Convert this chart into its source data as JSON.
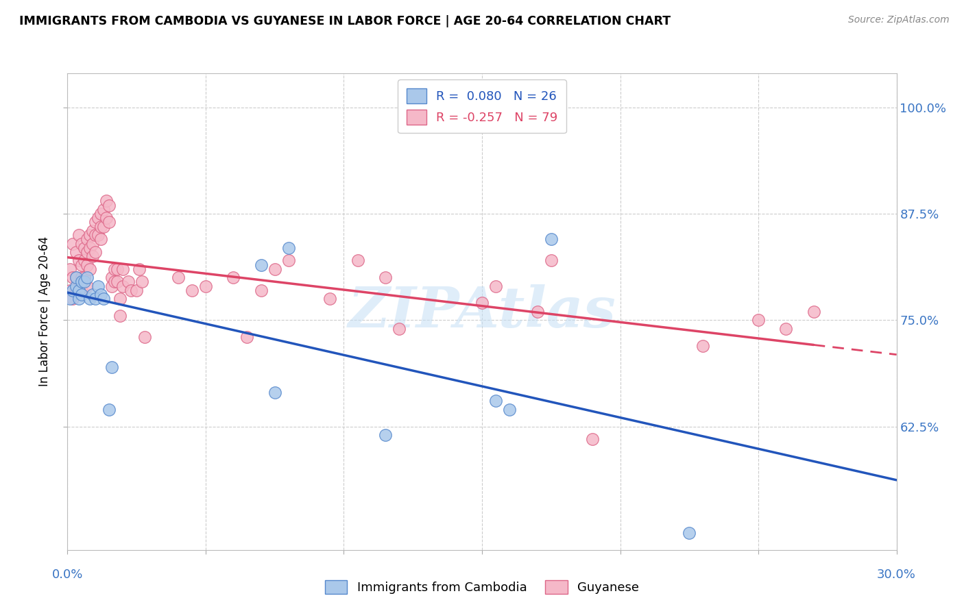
{
  "title": "IMMIGRANTS FROM CAMBODIA VS GUYANESE IN LABOR FORCE | AGE 20-64 CORRELATION CHART",
  "source": "Source: ZipAtlas.com",
  "ylabel": "In Labor Force | Age 20-64",
  "xlim": [
    0.0,
    0.3
  ],
  "ylim": [
    0.48,
    1.04
  ],
  "yticks": [
    0.625,
    0.75,
    0.875,
    1.0
  ],
  "ytick_labels": [
    "62.5%",
    "75.0%",
    "87.5%",
    "100.0%"
  ],
  "xticks": [
    0.0,
    0.05,
    0.1,
    0.15,
    0.2,
    0.25,
    0.3
  ],
  "cambodia_color": "#aac8ea",
  "cambodia_edge": "#5588cc",
  "guyanese_color": "#f5b8c8",
  "guyanese_edge": "#dd6688",
  "line_cambodia": "#2255bb",
  "line_guyanese": "#dd4466",
  "r_cambodia": 0.08,
  "n_cambodia": 26,
  "r_guyanese": -0.257,
  "n_guyanese": 79,
  "legend_label_cambodia": "Immigrants from Cambodia",
  "legend_label_guyanese": "Guyanese",
  "watermark": "ZIPAtlas",
  "cambodia_x": [
    0.001,
    0.002,
    0.003,
    0.003,
    0.004,
    0.004,
    0.005,
    0.005,
    0.006,
    0.007,
    0.008,
    0.009,
    0.01,
    0.011,
    0.012,
    0.013,
    0.015,
    0.016,
    0.07,
    0.075,
    0.08,
    0.115,
    0.155,
    0.16,
    0.175,
    0.225
  ],
  "cambodia_y": [
    0.775,
    0.785,
    0.79,
    0.8,
    0.785,
    0.775,
    0.78,
    0.795,
    0.795,
    0.8,
    0.775,
    0.78,
    0.775,
    0.79,
    0.78,
    0.775,
    0.645,
    0.695,
    0.815,
    0.665,
    0.835,
    0.615,
    0.655,
    0.645,
    0.845,
    0.5
  ],
  "guyanese_x": [
    0.001,
    0.001,
    0.002,
    0.002,
    0.002,
    0.003,
    0.003,
    0.003,
    0.004,
    0.004,
    0.004,
    0.005,
    0.005,
    0.005,
    0.005,
    0.006,
    0.006,
    0.006,
    0.007,
    0.007,
    0.007,
    0.007,
    0.008,
    0.008,
    0.008,
    0.009,
    0.009,
    0.009,
    0.01,
    0.01,
    0.01,
    0.011,
    0.011,
    0.012,
    0.012,
    0.012,
    0.013,
    0.013,
    0.014,
    0.014,
    0.015,
    0.015,
    0.016,
    0.016,
    0.017,
    0.017,
    0.018,
    0.018,
    0.019,
    0.019,
    0.02,
    0.02,
    0.022,
    0.023,
    0.025,
    0.026,
    0.027,
    0.028,
    0.04,
    0.045,
    0.05,
    0.06,
    0.065,
    0.07,
    0.075,
    0.08,
    0.095,
    0.105,
    0.115,
    0.12,
    0.15,
    0.155,
    0.17,
    0.175,
    0.19,
    0.23,
    0.25,
    0.26,
    0.27
  ],
  "guyanese_y": [
    0.81,
    0.785,
    0.84,
    0.8,
    0.775,
    0.83,
    0.8,
    0.785,
    0.85,
    0.82,
    0.79,
    0.84,
    0.815,
    0.8,
    0.785,
    0.835,
    0.82,
    0.8,
    0.845,
    0.83,
    0.815,
    0.79,
    0.85,
    0.835,
    0.81,
    0.855,
    0.84,
    0.825,
    0.865,
    0.85,
    0.83,
    0.87,
    0.85,
    0.875,
    0.86,
    0.845,
    0.88,
    0.86,
    0.89,
    0.87,
    0.885,
    0.865,
    0.8,
    0.79,
    0.81,
    0.795,
    0.81,
    0.795,
    0.775,
    0.755,
    0.81,
    0.79,
    0.795,
    0.785,
    0.785,
    0.81,
    0.795,
    0.73,
    0.8,
    0.785,
    0.79,
    0.8,
    0.73,
    0.785,
    0.81,
    0.82,
    0.775,
    0.82,
    0.8,
    0.74,
    0.77,
    0.79,
    0.76,
    0.82,
    0.61,
    0.72,
    0.75,
    0.74,
    0.76
  ]
}
